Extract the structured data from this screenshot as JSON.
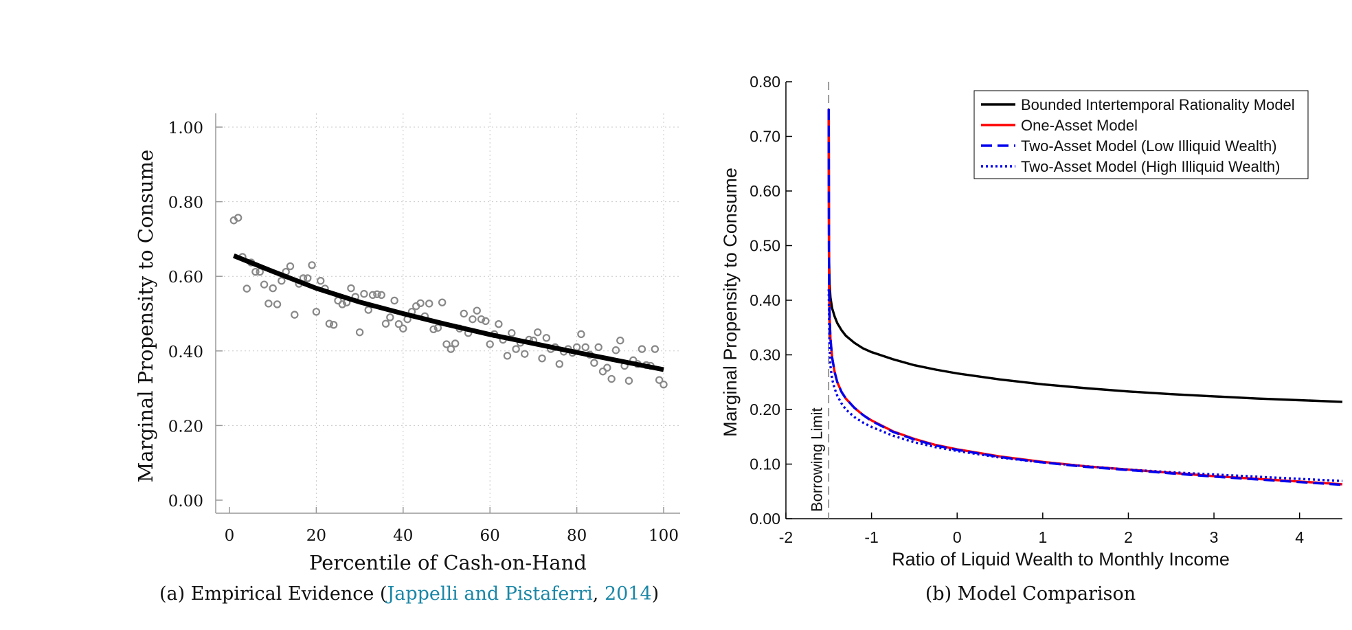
{
  "captions": {
    "a": {
      "prefix": "(a)  Empirical Evidence (",
      "author_link": "Jappelli and Pistaferri",
      "sep": ", ",
      "year_link": "2014",
      "suffix": ")"
    },
    "b": {
      "text": "(b)  Model Comparison"
    }
  },
  "colors": {
    "link": "#1a86a6",
    "scatter": "#888888",
    "fit": "#000000",
    "one_asset": "#ff0000",
    "two_asset": "#0000ee"
  },
  "chart_data": [
    {
      "type": "scatter",
      "title": "",
      "xlabel": "Percentile of Cash-on-Hand",
      "ylabel": "Marginal Propensity to Consume",
      "xlim": [
        0,
        100
      ],
      "ylim": [
        0,
        1.0
      ],
      "xticks": [
        0,
        20,
        40,
        60,
        80,
        100
      ],
      "xtick_labels": [
        "0",
        "20",
        "40",
        "60",
        "80",
        "100"
      ],
      "yticks": [
        0,
        0.2,
        0.4,
        0.6,
        0.8,
        1.0
      ],
      "ytick_labels": [
        "0.00",
        "0.20",
        "0.40",
        "0.60",
        "0.80",
        "1.00"
      ],
      "grid": true,
      "series": [
        {
          "kind": "points",
          "x": [
            1,
            2,
            3,
            4,
            5,
            6,
            7,
            8,
            9,
            10,
            11,
            12,
            13,
            14,
            15,
            16,
            17,
            18,
            19,
            20,
            21,
            22,
            23,
            24,
            25,
            26,
            27,
            28,
            29,
            30,
            31,
            32,
            33,
            34,
            35,
            36,
            37,
            38,
            39,
            40,
            41,
            42,
            43,
            44,
            45,
            46,
            47,
            48,
            49,
            50,
            51,
            52,
            53,
            54,
            55,
            56,
            57,
            58,
            59,
            60,
            61,
            62,
            63,
            64,
            65,
            66,
            67,
            68,
            69,
            70,
            71,
            72,
            73,
            74,
            75,
            76,
            77,
            78,
            79,
            80,
            81,
            82,
            83,
            84,
            85,
            86,
            87,
            88,
            89,
            90,
            91,
            92,
            93,
            94,
            95,
            96,
            97,
            98,
            99,
            100
          ],
          "y": [
            0.75,
            0.757,
            0.652,
            0.567,
            0.637,
            0.612,
            0.612,
            0.578,
            0.527,
            0.568,
            0.525,
            0.588,
            0.612,
            0.627,
            0.497,
            0.58,
            0.595,
            0.595,
            0.63,
            0.505,
            0.588,
            0.567,
            0.473,
            0.47,
            0.535,
            0.525,
            0.53,
            0.568,
            0.545,
            0.45,
            0.553,
            0.51,
            0.55,
            0.552,
            0.55,
            0.473,
            0.49,
            0.535,
            0.472,
            0.46,
            0.485,
            0.505,
            0.52,
            0.528,
            0.493,
            0.527,
            0.458,
            0.462,
            0.53,
            0.418,
            0.405,
            0.42,
            0.46,
            0.5,
            0.448,
            0.485,
            0.508,
            0.485,
            0.48,
            0.418,
            0.445,
            0.472,
            0.43,
            0.387,
            0.448,
            0.405,
            0.422,
            0.392,
            0.43,
            0.428,
            0.45,
            0.38,
            0.435,
            0.405,
            0.41,
            0.365,
            0.398,
            0.405,
            0.395,
            0.41,
            0.445,
            0.41,
            0.39,
            0.368,
            0.41,
            0.345,
            0.355,
            0.325,
            0.402,
            0.428,
            0.36,
            0.32,
            0.375,
            0.365,
            0.405,
            0.362,
            0.36,
            0.405,
            0.322,
            0.31
          ]
        },
        {
          "kind": "fit_line",
          "x": [
            1,
            10,
            20,
            30,
            40,
            50,
            60,
            70,
            80,
            90,
            100
          ],
          "y": [
            0.655,
            0.613,
            0.568,
            0.531,
            0.5,
            0.471,
            0.444,
            0.42,
            0.396,
            0.373,
            0.35
          ]
        }
      ]
    },
    {
      "type": "line",
      "title": "",
      "xlabel": "Ratio of Liquid Wealth to Monthly Income",
      "ylabel": "Marginal Propensity to Consume",
      "xlim": [
        -2,
        4.5
      ],
      "ylim": [
        0,
        0.8
      ],
      "xticks": [
        -2,
        -1,
        0,
        1,
        2,
        3,
        4
      ],
      "xtick_labels": [
        "-2",
        "-1",
        "0",
        "1",
        "2",
        "3",
        "4"
      ],
      "yticks": [
        0,
        0.1,
        0.2,
        0.3,
        0.4,
        0.5,
        0.6,
        0.7,
        0.8
      ],
      "ytick_labels": [
        "0.00",
        "0.10",
        "0.20",
        "0.30",
        "0.40",
        "0.50",
        "0.60",
        "0.70",
        "0.80"
      ],
      "grid": false,
      "legend": "top-right",
      "borrowing_limit": {
        "x": -1.5,
        "label": "Borrowing Limit"
      },
      "series": [
        {
          "name": "Bounded Intertemporal Rationality Model",
          "style": "solid",
          "color": "#000000",
          "x": [
            -1.5,
            -1.498,
            -1.495,
            -1.49,
            -1.48,
            -1.46,
            -1.43,
            -1.4,
            -1.35,
            -1.3,
            -1.2,
            -1.1,
            -1.0,
            -0.75,
            -0.5,
            -0.25,
            0,
            0.5,
            1,
            1.5,
            2,
            2.5,
            3,
            3.5,
            4,
            4.5
          ],
          "y": [
            0.75,
            0.55,
            0.47,
            0.43,
            0.405,
            0.385,
            0.37,
            0.358,
            0.345,
            0.335,
            0.322,
            0.312,
            0.305,
            0.292,
            0.281,
            0.273,
            0.266,
            0.255,
            0.246,
            0.239,
            0.233,
            0.228,
            0.224,
            0.22,
            0.217,
            0.214
          ]
        },
        {
          "name": "One-Asset Model",
          "style": "solid",
          "color": "#ff0000",
          "x": [
            -1.5,
            -1.498,
            -1.495,
            -1.49,
            -1.48,
            -1.46,
            -1.43,
            -1.4,
            -1.35,
            -1.3,
            -1.2,
            -1.1,
            -1.0,
            -0.75,
            -0.5,
            -0.25,
            0,
            0.5,
            1,
            1.5,
            2,
            2.5,
            3,
            3.5,
            4,
            4.5
          ],
          "y": [
            0.75,
            0.5,
            0.42,
            0.37,
            0.33,
            0.295,
            0.268,
            0.25,
            0.232,
            0.22,
            0.203,
            0.19,
            0.18,
            0.16,
            0.146,
            0.135,
            0.127,
            0.114,
            0.104,
            0.096,
            0.09,
            0.084,
            0.078,
            0.073,
            0.068,
            0.063
          ]
        },
        {
          "name": "Two-Asset Model (Low Illiquid Wealth)",
          "style": "dashed",
          "color": "#0000ee",
          "x": [
            -1.5,
            -1.498,
            -1.495,
            -1.49,
            -1.48,
            -1.46,
            -1.43,
            -1.4,
            -1.35,
            -1.3,
            -1.2,
            -1.1,
            -1.0,
            -0.75,
            -0.5,
            -0.25,
            0,
            0.5,
            1,
            1.5,
            2,
            2.5,
            3,
            3.5,
            4,
            4.5
          ],
          "y": [
            0.75,
            0.5,
            0.42,
            0.37,
            0.33,
            0.295,
            0.268,
            0.25,
            0.232,
            0.22,
            0.203,
            0.19,
            0.179,
            0.159,
            0.145,
            0.134,
            0.126,
            0.113,
            0.103,
            0.095,
            0.089,
            0.083,
            0.077,
            0.072,
            0.067,
            0.062
          ]
        },
        {
          "name": "Two-Asset Model (High Illiquid Wealth)",
          "style": "dotted",
          "color": "#0000ee",
          "x": [
            -1.5,
            -1.495,
            -1.49,
            -1.48,
            -1.46,
            -1.43,
            -1.4,
            -1.35,
            -1.3,
            -1.2,
            -1.1,
            -1.0,
            -0.75,
            -0.5,
            -0.25,
            0,
            0.5,
            1,
            1.5,
            2,
            2.5,
            3,
            3.5,
            4,
            4.5
          ],
          "y": [
            0.42,
            0.36,
            0.31,
            0.28,
            0.255,
            0.238,
            0.225,
            0.211,
            0.2,
            0.186,
            0.176,
            0.168,
            0.152,
            0.14,
            0.131,
            0.124,
            0.112,
            0.103,
            0.096,
            0.09,
            0.085,
            0.081,
            0.077,
            0.073,
            0.069
          ]
        }
      ]
    }
  ]
}
